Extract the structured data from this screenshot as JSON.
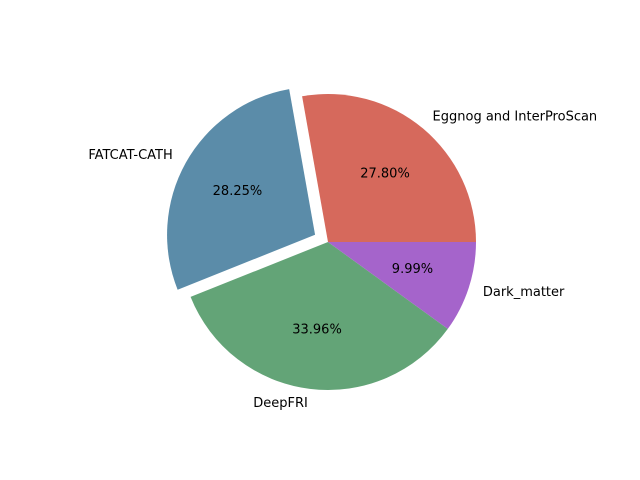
{
  "chart_data": {
    "type": "pie",
    "title": "",
    "start_angle_deg": 0,
    "direction": "counterclockwise",
    "slices": [
      {
        "label": "Eggnog and InterProScan",
        "value": 27.8,
        "pct_label": "27.80%",
        "color": "#d6695c",
        "exploded": false
      },
      {
        "label": "FATCAT-CATH",
        "value": 28.25,
        "pct_label": "28.25%",
        "color": "#5b8ca9",
        "exploded": true
      },
      {
        "label": "DeepFRI",
        "value": 33.96,
        "pct_label": "33.96%",
        "color": "#63a477",
        "exploded": false
      },
      {
        "label": "Dark_matter",
        "value": 9.99,
        "pct_label": "9.99%",
        "color": "#a564cb",
        "exploded": false
      }
    ]
  }
}
